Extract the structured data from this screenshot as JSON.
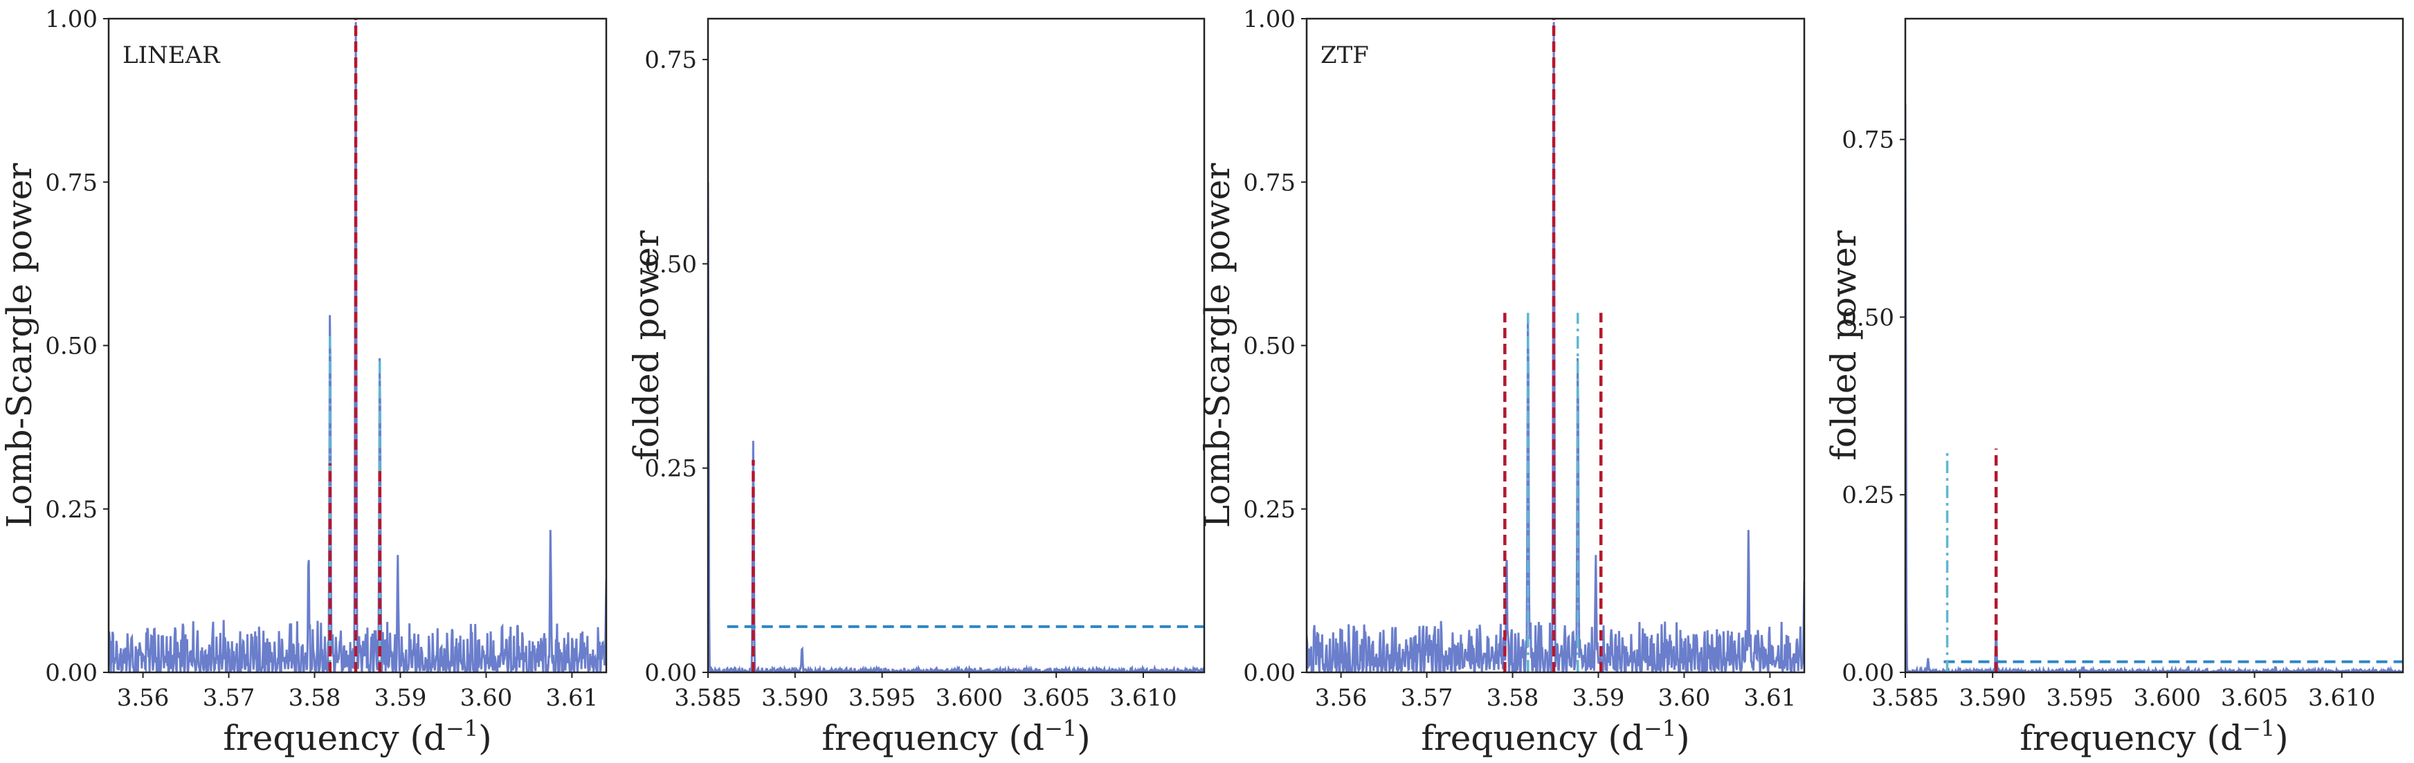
{
  "chart_data": [
    {
      "type": "line",
      "panel_tag": "LINEAR",
      "xlabel": "frequency (d",
      "xlabel_sup": "−1",
      "xlabel_end": ")",
      "ylabel": "Lomb-Scargle power",
      "xlim": [
        3.556,
        3.614
      ],
      "ylim": [
        0,
        1.0
      ],
      "xticks": [
        3.56,
        3.57,
        3.58,
        3.59,
        3.6,
        3.61
      ],
      "xtick_labels": [
        "3.56",
        "3.57",
        "3.58",
        "3.59",
        "3.60",
        "3.61"
      ],
      "yticks": [
        0,
        0.25,
        0.5,
        0.75,
        1.0
      ],
      "ytick_labels": [
        "0.00",
        "0.25",
        "0.50",
        "0.75",
        "1.00"
      ],
      "peaks": [
        {
          "x": 3.5818,
          "y": 0.58
        },
        {
          "x": 3.5848,
          "y": 1.0
        },
        {
          "x": 3.5876,
          "y": 0.51
        },
        {
          "x": 3.5793,
          "y": 0.19
        },
        {
          "x": 3.5897,
          "y": 0.18
        },
        {
          "x": 3.6075,
          "y": 0.22
        },
        {
          "x": 3.614,
          "y": 0.14
        }
      ],
      "noise_level": 0.07,
      "ref_lines": [
        {
          "style": "red-dashed",
          "x": 3.5848,
          "y0": 0,
          "y1": 1.0
        },
        {
          "style": "cyan-dashdot",
          "x": 3.5818,
          "y0": 0,
          "y1": 0.52
        },
        {
          "style": "cyan-dashdot",
          "x": 3.5876,
          "y0": 0,
          "y1": 0.48
        },
        {
          "style": "red-dashed",
          "x": 3.5818,
          "y0": 0,
          "y1": 0.32
        },
        {
          "style": "red-dashed",
          "x": 3.5876,
          "y0": 0,
          "y1": 0.31
        }
      ],
      "series_color": "#6a7ecb"
    },
    {
      "type": "line",
      "panel_tag": "",
      "xlabel": "frequency (d",
      "xlabel_sup": "−1",
      "xlabel_end": ")",
      "ylabel": "folded power",
      "xlim": [
        3.585,
        3.6135
      ],
      "ylim": [
        0,
        0.8
      ],
      "xticks": [
        3.585,
        3.59,
        3.595,
        3.6,
        3.605,
        3.61
      ],
      "xtick_labels": [
        "3.585",
        "3.590",
        "3.595",
        "3.600",
        "3.605",
        "3.610"
      ],
      "yticks": [
        0,
        0.25,
        0.5,
        0.75
      ],
      "ytick_labels": [
        "0.00",
        "0.25",
        "0.50",
        "0.75"
      ],
      "peaks": [
        {
          "x": 3.585,
          "y": 0.6
        },
        {
          "x": 3.5876,
          "y": 0.285
        },
        {
          "x": 3.5904,
          "y": 0.032
        }
      ],
      "noise_level": 0.005,
      "threshold": {
        "y": 0.056,
        "x0": 3.5861,
        "x1": 3.6135
      },
      "ref_lines": [
        {
          "style": "red-dashed",
          "x": 3.5876,
          "y0": 0,
          "y1": 0.26
        }
      ],
      "series_color": "#6a7ecb"
    },
    {
      "type": "line",
      "panel_tag": "ZTF",
      "xlabel": "frequency (d",
      "xlabel_sup": "−1",
      "xlabel_end": ")",
      "ylabel": "Lomb-Scargle power",
      "xlim": [
        3.556,
        3.614
      ],
      "ylim": [
        0,
        1.0
      ],
      "xticks": [
        3.56,
        3.57,
        3.58,
        3.59,
        3.6,
        3.61
      ],
      "xtick_labels": [
        "3.56",
        "3.57",
        "3.58",
        "3.59",
        "3.60",
        "3.61"
      ],
      "yticks": [
        0,
        0.25,
        0.5,
        0.75,
        1.0
      ],
      "ytick_labels": [
        "0.00",
        "0.25",
        "0.50",
        "0.75",
        "1.00"
      ],
      "peaks": [
        {
          "x": 3.5818,
          "y": 0.58
        },
        {
          "x": 3.5848,
          "y": 1.0
        },
        {
          "x": 3.5876,
          "y": 0.51
        },
        {
          "x": 3.5793,
          "y": 0.19
        },
        {
          "x": 3.5897,
          "y": 0.18
        },
        {
          "x": 3.6075,
          "y": 0.22
        },
        {
          "x": 3.614,
          "y": 0.14
        }
      ],
      "noise_level": 0.07,
      "ref_lines": [
        {
          "style": "red-dashed",
          "x": 3.5848,
          "y0": 0,
          "y1": 1.0
        },
        {
          "style": "red-dashed",
          "x": 3.5791,
          "y0": 0,
          "y1": 0.55
        },
        {
          "style": "red-dashed",
          "x": 3.5903,
          "y0": 0,
          "y1": 0.55
        },
        {
          "style": "cyan-dashdot",
          "x": 3.5818,
          "y0": 0,
          "y1": 0.55
        },
        {
          "style": "cyan-dashdot",
          "x": 3.5876,
          "y0": 0,
          "y1": 0.55
        }
      ],
      "series_color": "#6a7ecb"
    },
    {
      "type": "line",
      "panel_tag": "",
      "xlabel": "frequency (d",
      "xlabel_sup": "−1",
      "xlabel_end": ")",
      "ylabel": "folded power",
      "xlim": [
        3.585,
        3.6135
      ],
      "ylim": [
        0,
        0.92
      ],
      "xticks": [
        3.585,
        3.59,
        3.595,
        3.6,
        3.605,
        3.61
      ],
      "xtick_labels": [
        "3.585",
        "3.590",
        "3.595",
        "3.600",
        "3.605",
        "3.610"
      ],
      "yticks": [
        0,
        0.25,
        0.5,
        0.75
      ],
      "ytick_labels": [
        "0.00",
        "0.25",
        "0.50",
        "0.75"
      ],
      "peaks": [
        {
          "x": 3.585,
          "y": 0.8
        },
        {
          "x": 3.5863,
          "y": 0.02
        },
        {
          "x": 3.5902,
          "y": 0.06
        },
        {
          "x": 3.5952,
          "y": 0.008
        },
        {
          "x": 3.6012,
          "y": 0.008
        },
        {
          "x": 3.6062,
          "y": 0.008
        }
      ],
      "noise_level": 0.004,
      "threshold": {
        "y": 0.015,
        "x0": 3.5872,
        "x1": 3.6135
      },
      "ref_lines": [
        {
          "style": "cyan-dashdot",
          "x": 3.5874,
          "y0": 0,
          "y1": 0.315
        },
        {
          "style": "red-dashed",
          "x": 3.5902,
          "y0": 0,
          "y1": 0.315
        }
      ],
      "series_color": "#6a7ecb"
    }
  ],
  "colors": {
    "series": "#6a7ecb",
    "red_dashed": "#b5172e",
    "cyan_dashdot": "#5fb8d1",
    "threshold": "#2f86c6",
    "axis": "#222222"
  }
}
